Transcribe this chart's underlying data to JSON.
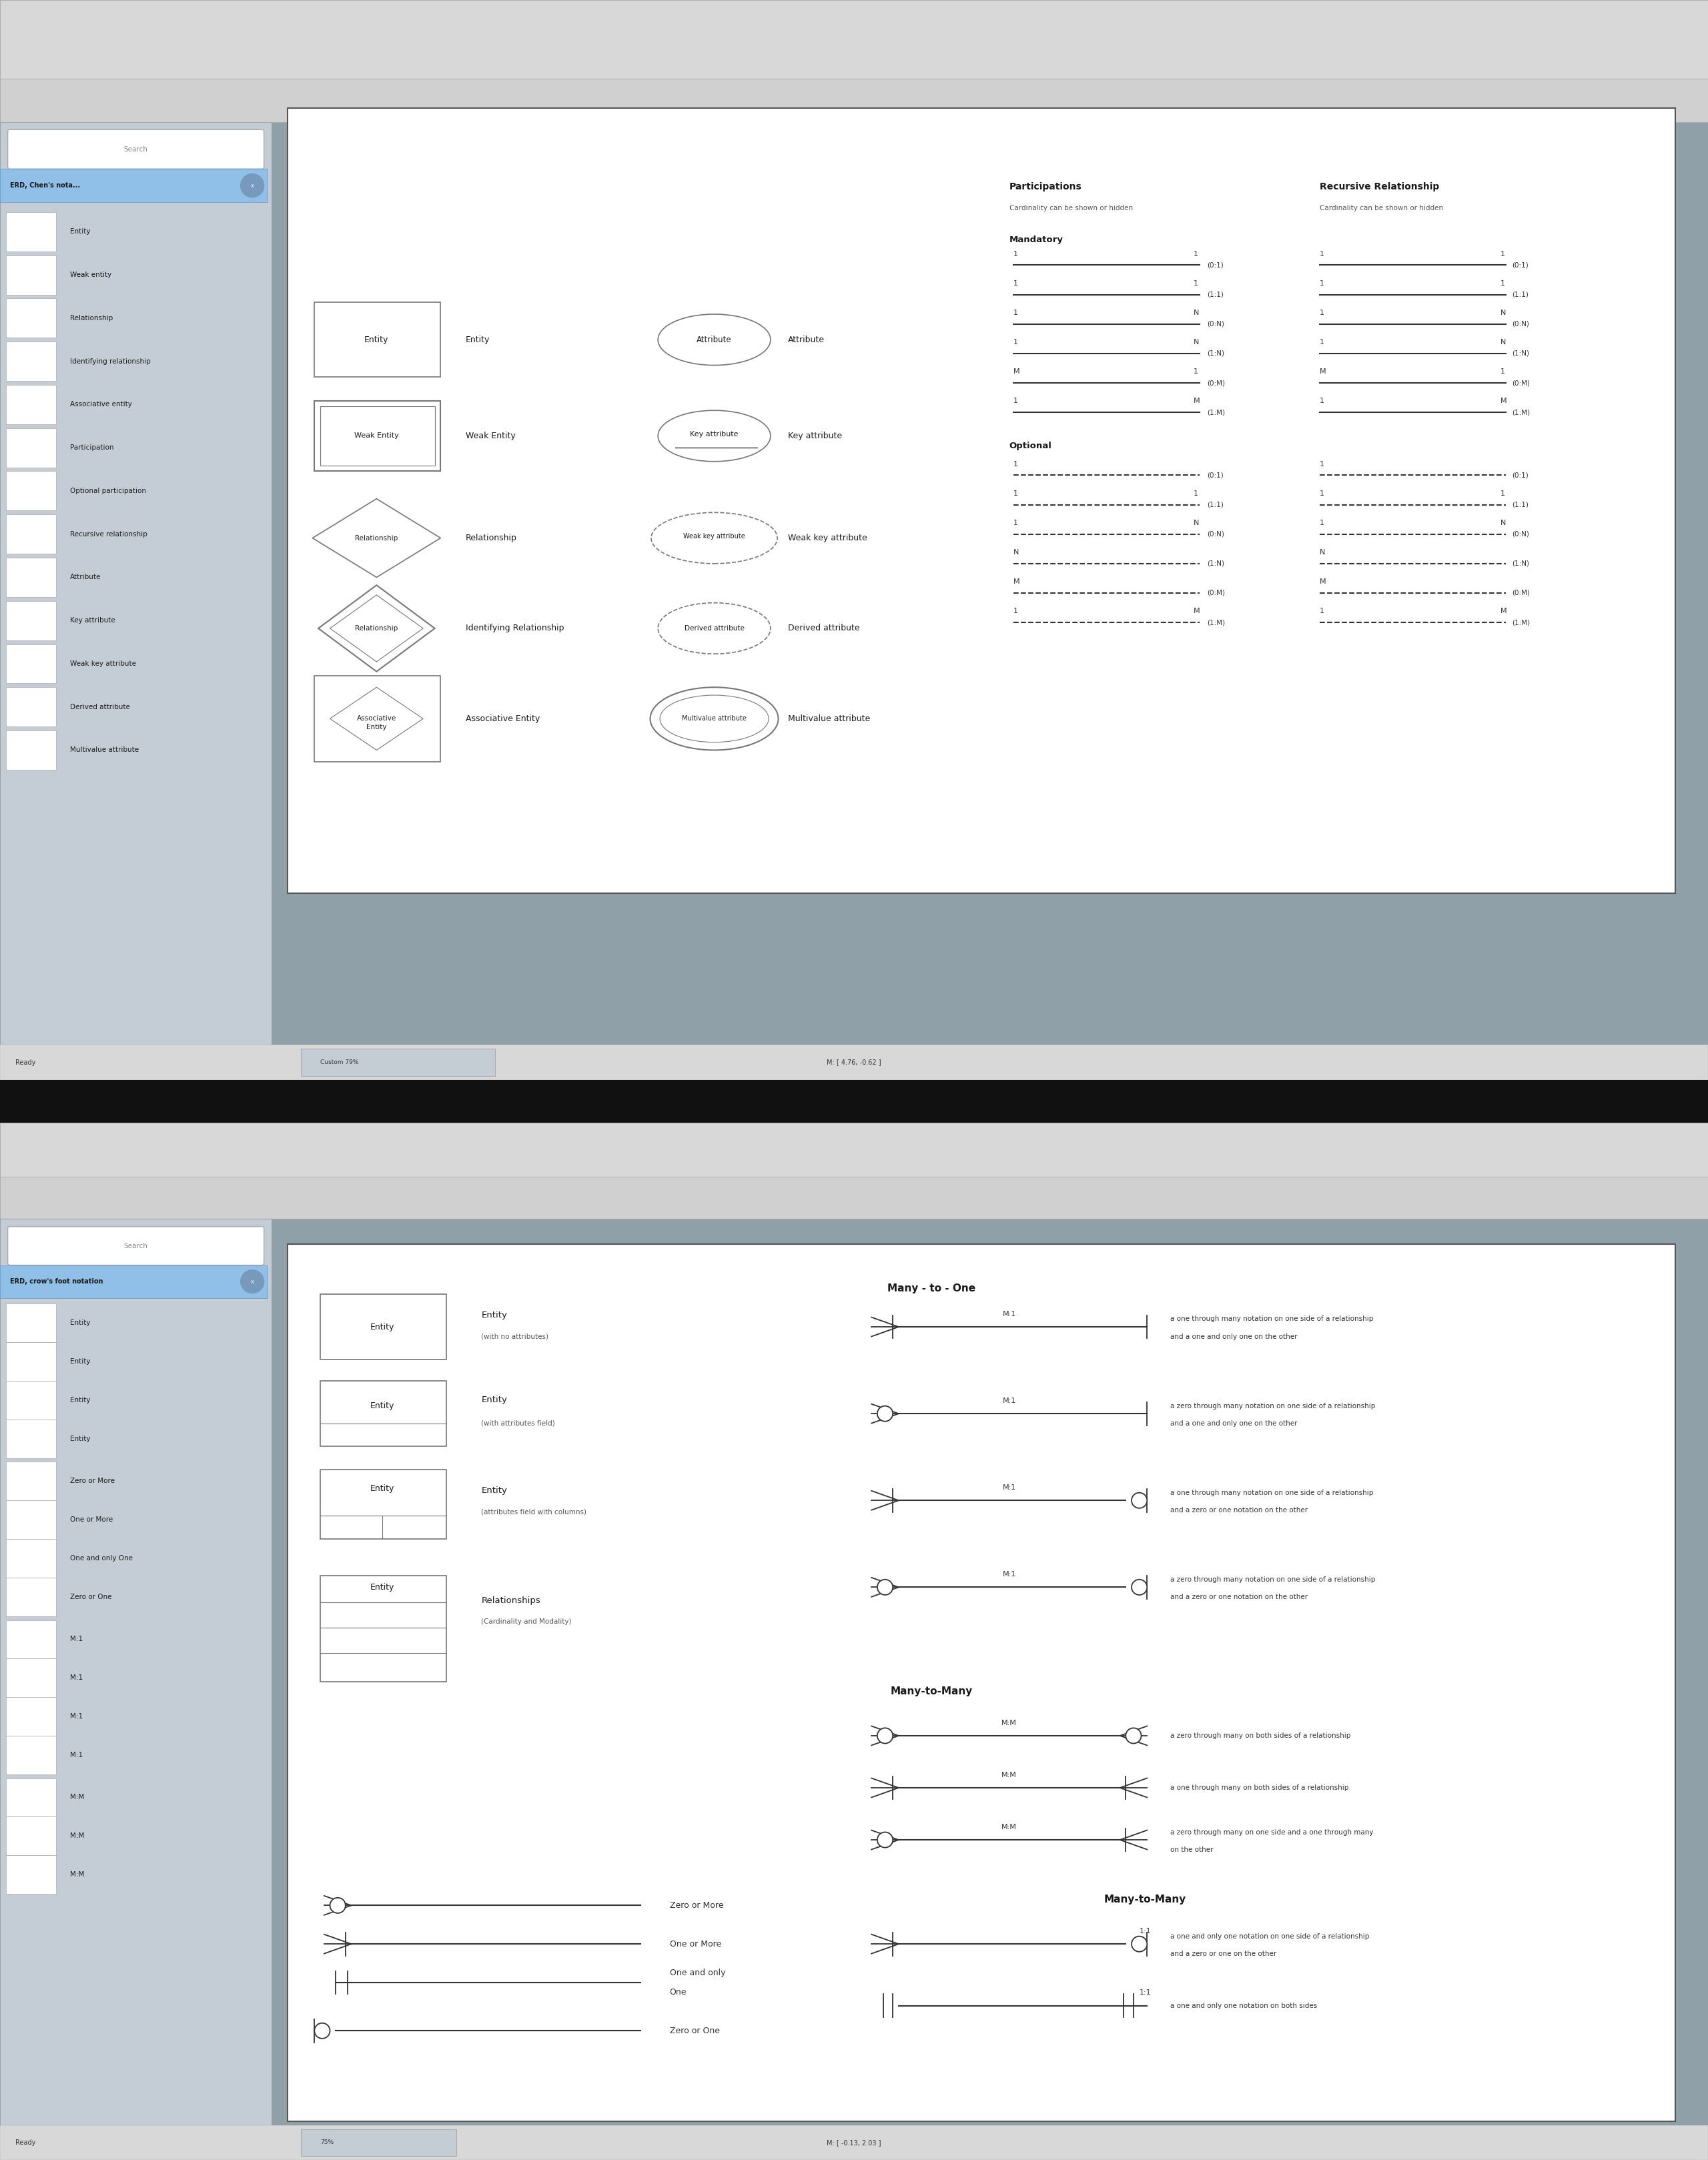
{
  "bg_color": "#8fa0a8",
  "sidebar_bg": "#c4cdd6",
  "toolbar_bg": "#d8d8d8",
  "toolbar_bg2": "#d0d0d0",
  "white": "#ffffff",
  "black_bar": "#111111",
  "blue_header": "#90c0e8",
  "dark_text": "#1a1a1a",
  "gray_text": "#555555",
  "shape_border": "#777777",
  "line_color": "#333333",
  "panel1_header": "ERD, Chen's nota...",
  "panel1_items": [
    "Entity",
    "Weak entity",
    "Relationship",
    "Identifying relationship",
    "Associative entity",
    "Participation",
    "Optional participation",
    "Recursive relationship",
    "Attribute",
    "Key attribute",
    "Weak key attribute",
    "Derived attribute",
    "Multivalue attribute"
  ],
  "panel2_header": "ERD, crow's foot notation",
  "panel2_items": [
    "Entity",
    "Entity",
    "Entity",
    "Entity",
    "Zero or More",
    "One or More",
    "One and only One",
    "Zero or One",
    "M:1",
    "M:1",
    "M:1",
    "M:1",
    "M:M",
    "M:M",
    "M:M"
  ],
  "participations_title": "Participations",
  "participations_sub": "Cardinality can be shown or hidden",
  "recursive_title": "Recursive Relationship",
  "recursive_sub": "Cardinality can be shown or hidden",
  "mandatory_label": "Mandatory",
  "optional_label": "Optional",
  "mto_title": "Many - to - One",
  "mtm_title": "Many-to-Many",
  "status1": "Ready",
  "status1_coord": "M: [ 4.76, -0.62 ]",
  "status1_zoom": "Custom 79%",
  "status2": "Ready",
  "status2_coord": "M: [ -0.13, 2.03 ]",
  "status2_zoom": "75%"
}
